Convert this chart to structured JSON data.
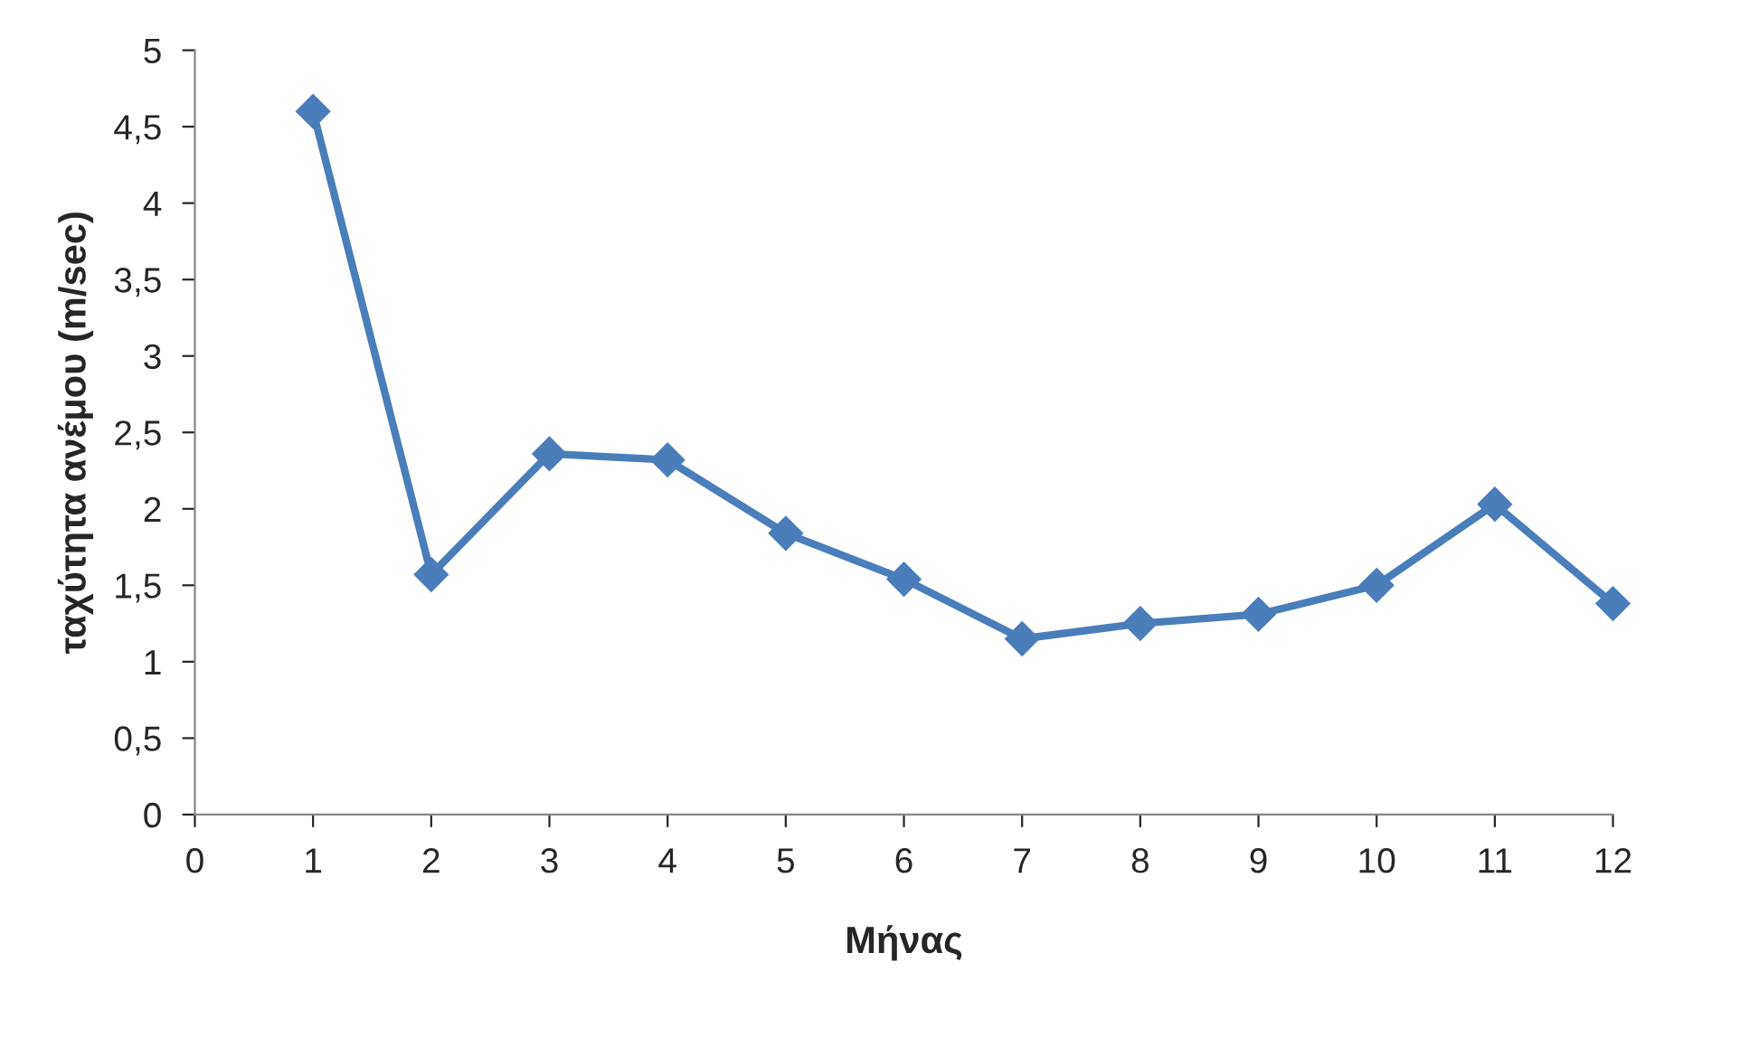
{
  "chart_data": {
    "type": "line",
    "xlabel": "Μήνας",
    "ylabel": "ταχύτητα ανέμου (m/sec)",
    "x": [
      1,
      2,
      3,
      4,
      5,
      6,
      7,
      8,
      9,
      10,
      11,
      12
    ],
    "series": [
      {
        "color": "#4a7ebb",
        "values": [
          4.6,
          1.57,
          2.36,
          2.32,
          1.84,
          1.54,
          1.15,
          1.25,
          1.31,
          1.5,
          2.03,
          1.38
        ]
      }
    ],
    "xlim": [
      0,
      12
    ],
    "xticks": [
      0,
      1,
      2,
      3,
      4,
      5,
      6,
      7,
      8,
      9,
      10,
      11,
      12
    ],
    "ylim": [
      0,
      5
    ],
    "yticks": [
      0,
      {
        "value": 0.5,
        "label": "0,5"
      },
      1,
      {
        "value": 1.5,
        "label": "1,5"
      },
      2,
      {
        "value": 2.5,
        "label": "2,5"
      },
      3,
      {
        "value": 3.5,
        "label": "3,5"
      },
      4,
      {
        "value": 4.5,
        "label": "4,5"
      },
      5
    ],
    "marker": "diamond",
    "line_style": "solid",
    "grid": false,
    "legend": false
  }
}
